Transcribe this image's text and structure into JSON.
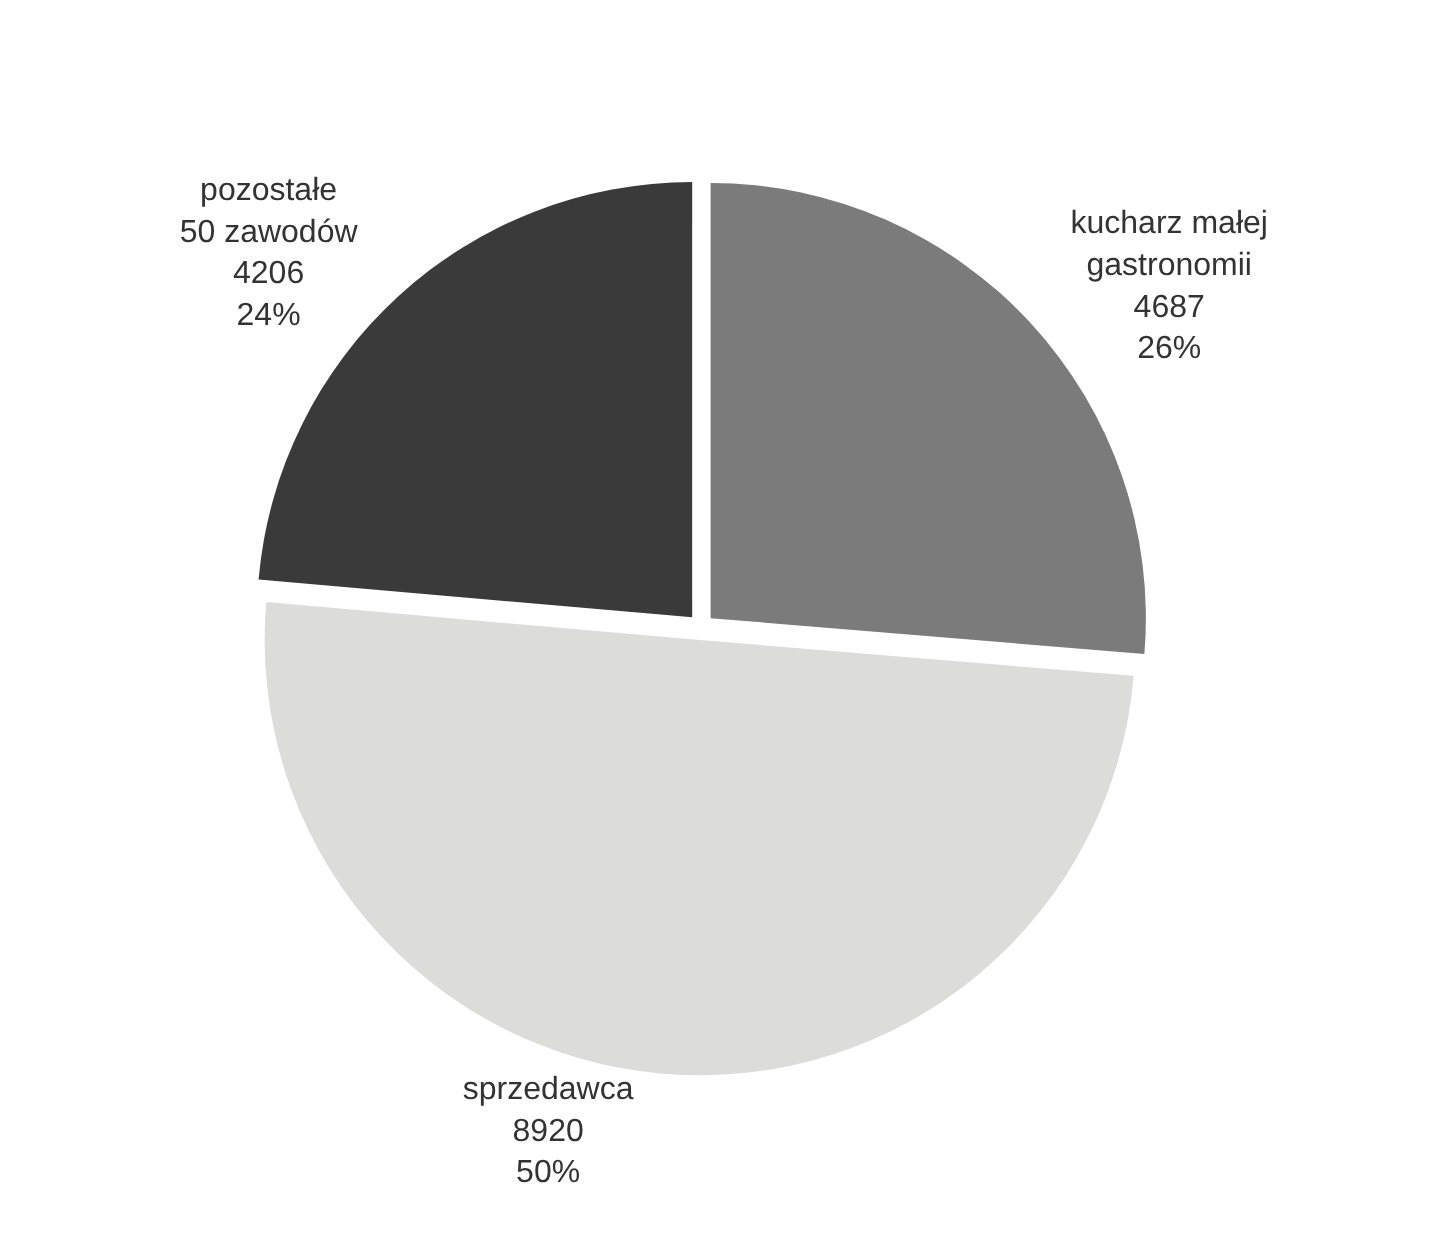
{
  "chart_data": {
    "type": "pie",
    "categories": [
      "kucharz małej\ngastronomii",
      "sprzedawca",
      "pozostałe\n50 zawodów"
    ],
    "values": [
      4687,
      8920,
      4206
    ],
    "colors": [
      "#7b7b7b",
      "#dcdcd9",
      "#3a3a3a"
    ],
    "value_labels": [
      "4687\n26%",
      "8920\n50%",
      "4206\n24%"
    ],
    "legend": false
  }
}
